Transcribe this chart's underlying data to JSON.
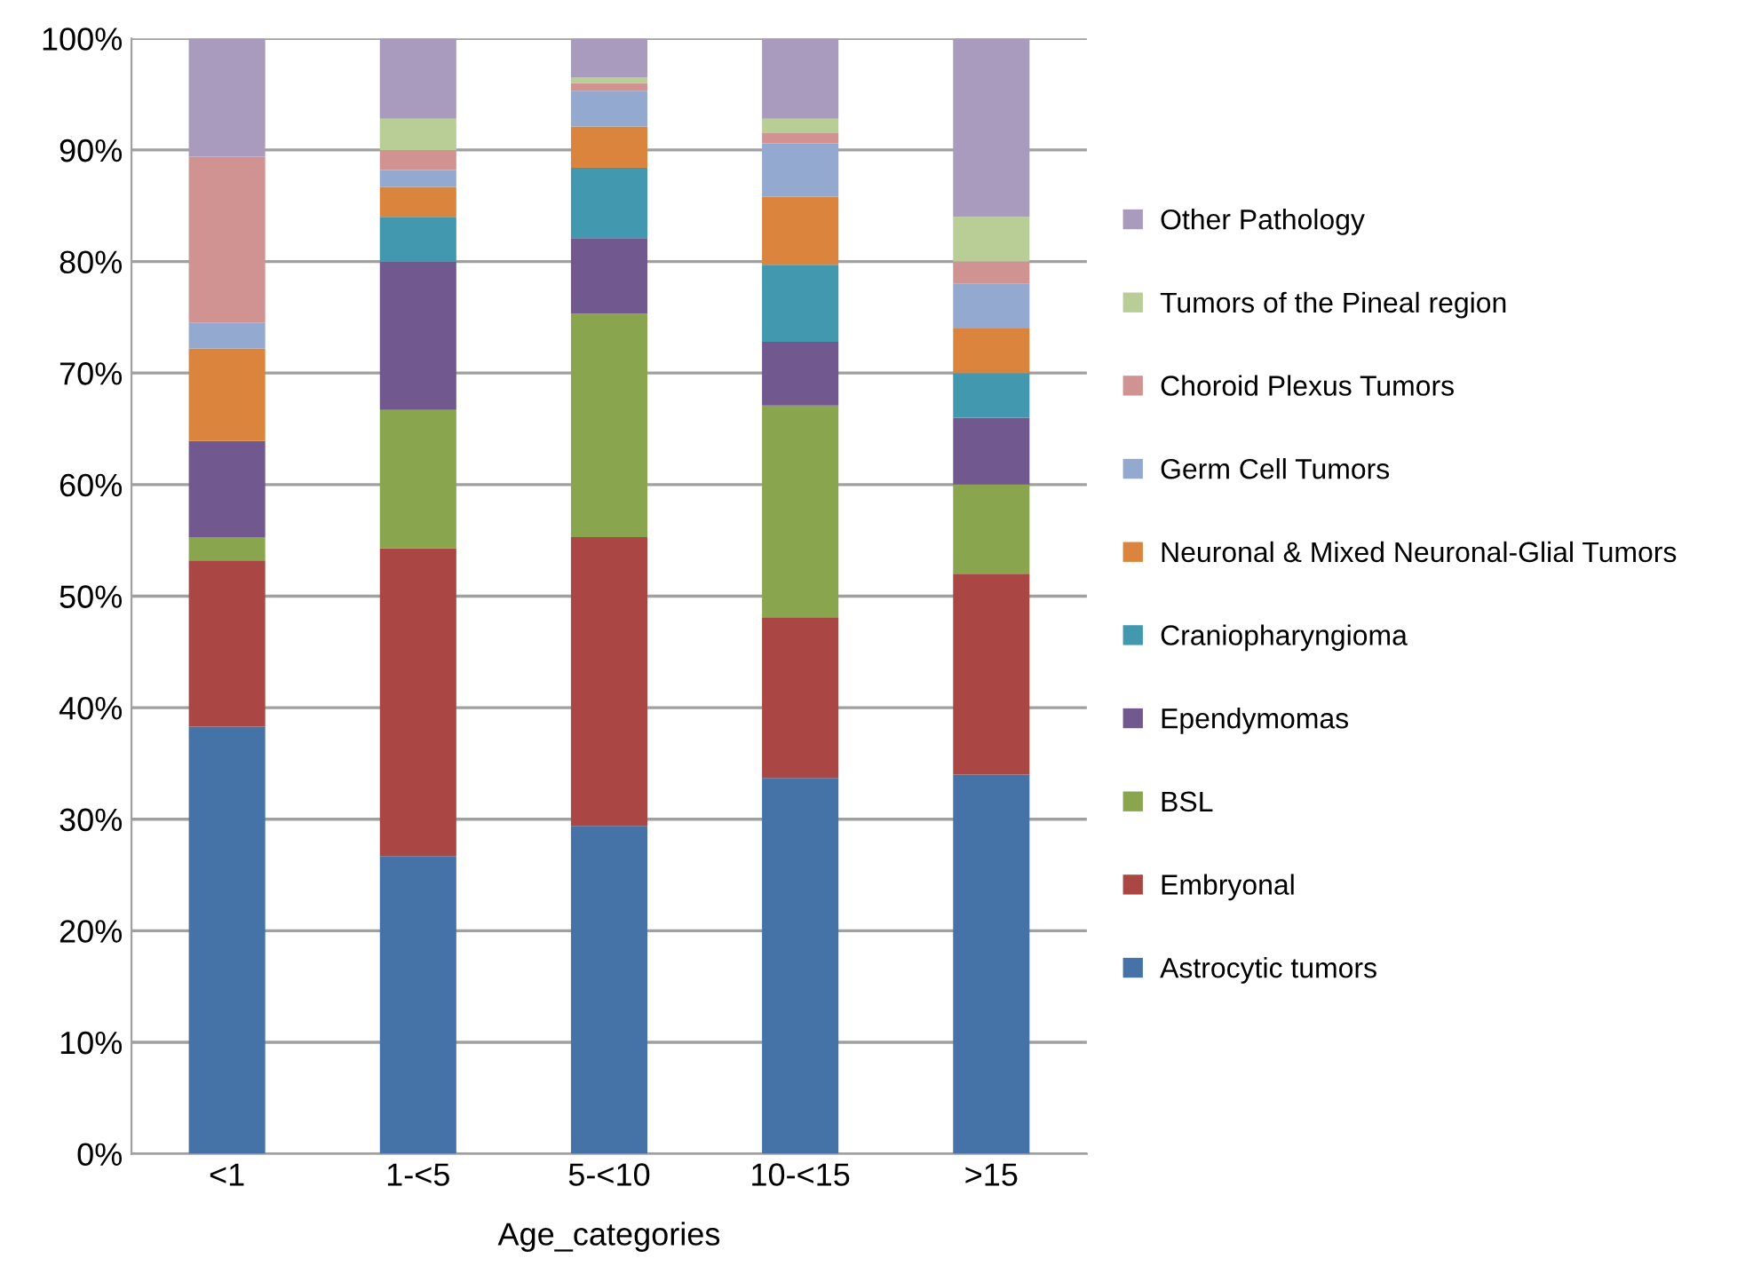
{
  "chart_data": {
    "type": "bar",
    "stacked": true,
    "xlabel": "Age_categories",
    "categories": [
      "<1",
      "1-<5",
      "5-<10",
      "10-<15",
      ">15"
    ],
    "series": [
      {
        "name": "Astrocytic tumors",
        "color": "#4572a7",
        "values": [
          38.3,
          26.7,
          29.4,
          33.7,
          34.0
        ]
      },
      {
        "name": "Embryonal",
        "color": "#aa4643",
        "values": [
          14.9,
          27.6,
          25.9,
          14.4,
          18.0
        ]
      },
      {
        "name": "BSL",
        "color": "#89a54e",
        "values": [
          2.1,
          12.4,
          20.0,
          19.0,
          8.0
        ]
      },
      {
        "name": "Ependymomas",
        "color": "#71588f",
        "values": [
          8.6,
          13.3,
          6.8,
          5.7,
          6.0
        ]
      },
      {
        "name": "Craniopharyngioma",
        "color": "#4198af",
        "values": [
          0,
          4.0,
          6.3,
          6.9,
          4.0
        ]
      },
      {
        "name": "Neuronal & Mixed Neuronal-Glial Tumors",
        "color": "#db843d",
        "values": [
          8.3,
          2.7,
          3.7,
          6.1,
          4.0
        ]
      },
      {
        "name": "Germ Cell Tumors",
        "color": "#93a9cf",
        "values": [
          2.3,
          1.5,
          3.2,
          4.8,
          4.0
        ]
      },
      {
        "name": "Choroid Plexus Tumors",
        "color": "#d19392",
        "values": [
          14.9,
          1.8,
          0.7,
          0.9,
          2.0
        ]
      },
      {
        "name": "Tumors of the Pineal region",
        "color": "#b9cd96",
        "values": [
          0,
          2.8,
          0.5,
          1.3,
          4.0
        ]
      },
      {
        "name": "Other Pathology",
        "color": "#a99bbd",
        "values": [
          10.6,
          7.2,
          3.5,
          7.2,
          16.0
        ]
      }
    ],
    "ylim": [
      0,
      100
    ],
    "yticks": [
      {
        "value": 0,
        "label": "0%"
      },
      {
        "value": 10,
        "label": "10%"
      },
      {
        "value": 20,
        "label": "20%"
      },
      {
        "value": 30,
        "label": "30%"
      },
      {
        "value": 40,
        "label": "40%"
      },
      {
        "value": 50,
        "label": "50%"
      },
      {
        "value": 60,
        "label": "60%"
      },
      {
        "value": 70,
        "label": "70%"
      },
      {
        "value": 80,
        "label": "80%"
      },
      {
        "value": 90,
        "label": "90%"
      },
      {
        "value": 100,
        "label": "100%"
      }
    ],
    "grid": "y",
    "legend": "right"
  }
}
